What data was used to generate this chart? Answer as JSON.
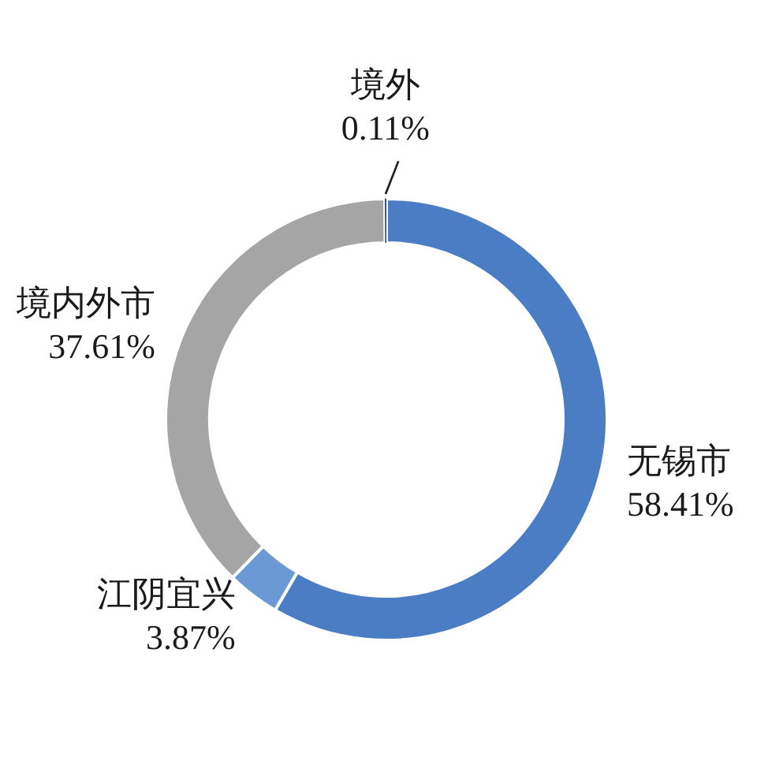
{
  "chart_data": {
    "type": "donut",
    "categories": [
      "无锡市",
      "江阴宜兴",
      "境内外市",
      "境外"
    ],
    "values": [
      58.41,
      3.87,
      37.61,
      0.11
    ],
    "colors": [
      "#4a7dc4",
      "#6a99d5",
      "#a5a5a5",
      "#264478"
    ],
    "value_labels": [
      "58.41%",
      "3.87%",
      "37.61%",
      "0.11%"
    ]
  }
}
